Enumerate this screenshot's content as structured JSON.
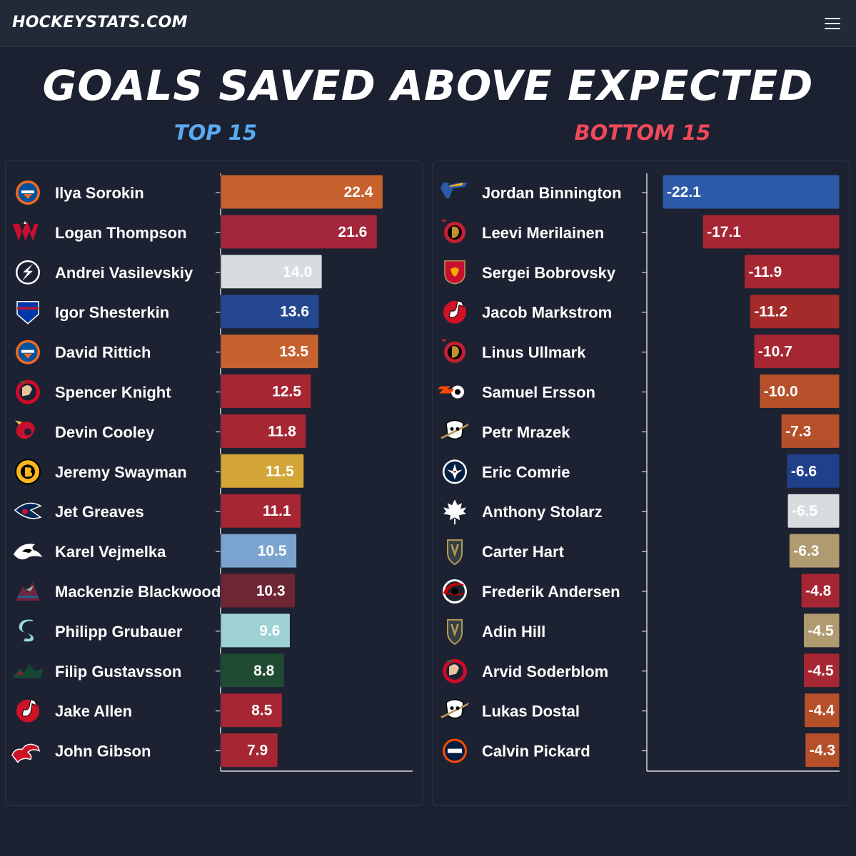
{
  "header": {
    "brand": "HOCKEYSTATS.COM",
    "menu_icon": "hamburger-menu-icon"
  },
  "title": "GOALS SAVED ABOVE EXPECTED",
  "chart_data": [
    {
      "type": "bar",
      "orientation": "horizontal",
      "title": "TOP 15",
      "categories": [
        "Ilya Sorokin",
        "Logan Thompson",
        "Andrei Vasilevskiy",
        "Igor Shesterkin",
        "David Rittich",
        "Spencer Knight",
        "Devin Cooley",
        "Jeremy Swayman",
        "Jet Greaves",
        "Karel Vejmelka",
        "Mackenzie Blackwood",
        "Philipp Grubauer",
        "Filip Gustavsson",
        "Jake Allen",
        "John Gibson"
      ],
      "values": [
        22.4,
        21.6,
        14.0,
        13.6,
        13.5,
        12.5,
        11.8,
        11.5,
        11.1,
        10.5,
        10.3,
        9.6,
        8.8,
        8.5,
        7.9
      ],
      "labels": [
        "22.4",
        "21.6",
        "14.0",
        "13.6",
        "13.5",
        "12.5",
        "11.8",
        "11.5",
        "11.1",
        "10.5",
        "10.3",
        "9.6",
        "8.8",
        "8.5",
        "7.9"
      ],
      "teams": [
        "NYI",
        "WSH",
        "TBL",
        "NYR",
        "NYI",
        "CHI",
        "CGY",
        "BOS",
        "CBJ",
        "UTA",
        "COL",
        "SEA",
        "MIN",
        "NJD",
        "DET"
      ],
      "colors": [
        "#c7622e",
        "#a3263a",
        "#d9dcdf",
        "#25478f",
        "#c7622e",
        "#a62633",
        "#a62633",
        "#d4a537",
        "#a62633",
        "#7aa4cf",
        "#6e2534",
        "#9dd1d4",
        "#1f4b32",
        "#a62633",
        "#a62633"
      ],
      "label_colors": [
        "#ffffff",
        "#ffffff",
        "#ffffff",
        "#ffffff",
        "#ffffff",
        "#ffffff",
        "#ffffff",
        "#ffffff",
        "#ffffff",
        "#ffffff",
        "#ffffff",
        "#ffffff",
        "#ffffff",
        "#ffffff",
        "#ffffff"
      ],
      "xlim": [
        0,
        26
      ],
      "grid": false
    },
    {
      "type": "bar",
      "orientation": "horizontal",
      "title": "BOTTOM 15",
      "categories": [
        "Jordan Binnington",
        "Leevi Merilainen",
        "Sergei Bobrovsky",
        "Jacob Markstrom",
        "Linus Ullmark",
        "Samuel Ersson",
        "Petr Mrazek",
        "Eric Comrie",
        "Anthony Stolarz",
        "Carter Hart",
        "Frederik Andersen",
        "Adin Hill",
        "Arvid Soderblom",
        "Lukas Dostal",
        "Calvin Pickard"
      ],
      "values": [
        -22.1,
        -17.1,
        -11.9,
        -11.2,
        -10.7,
        -10.0,
        -7.3,
        -6.6,
        -6.5,
        -6.3,
        -4.8,
        -4.5,
        -4.5,
        -4.4,
        -4.3
      ],
      "labels": [
        "-22.1",
        "-17.1",
        "-11.9",
        "-11.2",
        "-10.7",
        "-10.0",
        "-7.3",
        "-6.6",
        "-6.5",
        "-6.3",
        "-4.8",
        "-4.5",
        "-4.5",
        "-4.4",
        "-4.3"
      ],
      "teams": [
        "STL",
        "OTT",
        "FLA",
        "NJD",
        "OTT",
        "PHI",
        "ANA",
        "WPG",
        "TOR",
        "VGK",
        "CAR",
        "VGK",
        "CHI",
        "ANA",
        "EDM"
      ],
      "colors": [
        "#2c5aa8",
        "#a62633",
        "#a62633",
        "#a52a2a",
        "#a62633",
        "#b5502a",
        "#b5502a",
        "#21408a",
        "#d9dcdf",
        "#b09a70",
        "#a62633",
        "#b09a70",
        "#a62633",
        "#b5502a",
        "#b5502a"
      ],
      "xlim": [
        -22.1,
        0
      ],
      "grid": false
    }
  ]
}
